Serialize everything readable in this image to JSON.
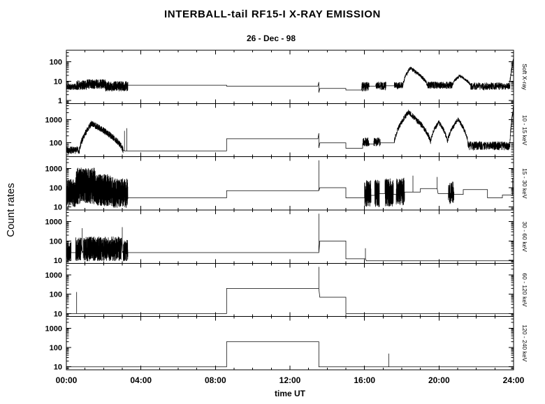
{
  "chart_data": {
    "type": "line",
    "title": "INTERBALL-tail  RF15-I   X-RAY  EMISSION",
    "subtitle": "26 - Dec - 98",
    "xlabel": "time UT",
    "ylabel": "Count rates",
    "x_range": [
      0,
      24
    ],
    "x_tick_hours": [
      0,
      4,
      8,
      12,
      16,
      20,
      24
    ],
    "x_tick_labels": [
      "00:00",
      "04:00",
      "08:00",
      "12:00",
      "16:00",
      "20:00",
      "24:00"
    ],
    "x_minor_step_hours": 1,
    "grid": false,
    "legend": "none",
    "line_color": "#000000",
    "seed": 11,
    "panels": [
      {
        "name": "Soft X-ray",
        "ylim": [
          0.7,
          400
        ],
        "yticks": [
          1,
          10,
          100
        ],
        "segments": [
          {
            "kind": "noise",
            "t0": 0.0,
            "t1": 0.55,
            "lo": 3.5,
            "hi": 7.5,
            "n": 130
          },
          {
            "kind": "noise",
            "t0": 0.55,
            "t1": 1.1,
            "lo": 3.5,
            "hi": 11,
            "n": 140
          },
          {
            "kind": "noise",
            "t0": 1.1,
            "t1": 2.1,
            "lo": 4,
            "hi": 13,
            "n": 260
          },
          {
            "kind": "noise",
            "t0": 2.1,
            "t1": 3.3,
            "lo": 3,
            "hi": 10,
            "n": 300
          },
          {
            "kind": "flat",
            "t0": 3.3,
            "t1": 8.6,
            "v": 6.2
          },
          {
            "kind": "flat",
            "t0": 8.6,
            "t1": 13.5,
            "v": 5.5
          },
          {
            "kind": "pts",
            "p": [
              [
                13.55,
                9
              ],
              [
                13.55,
                2.6
              ]
            ]
          },
          {
            "kind": "flat",
            "t0": 13.6,
            "t1": 15.0,
            "v": 4.2
          },
          {
            "kind": "flat",
            "t0": 15.0,
            "t1": 15.85,
            "v": 3.5
          },
          {
            "kind": "noise",
            "t0": 15.85,
            "t1": 16.25,
            "lo": 3,
            "hi": 9,
            "n": 90
          },
          {
            "kind": "flat",
            "t0": 16.25,
            "t1": 16.6,
            "v": 5.5
          },
          {
            "kind": "noise",
            "t0": 16.6,
            "t1": 17.15,
            "lo": 3.5,
            "hi": 9.5,
            "n": 120
          },
          {
            "kind": "flat",
            "t0": 17.15,
            "t1": 17.6,
            "v": 5.8
          },
          {
            "kind": "noise",
            "t0": 17.6,
            "t1": 18.05,
            "lo": 4,
            "hi": 9,
            "n": 100
          },
          {
            "kind": "hump",
            "t0": 18.05,
            "t1": 19.4,
            "tp": 18.45,
            "base": 5,
            "peak": 48,
            "noise": 0.22,
            "n": 220
          },
          {
            "kind": "noise",
            "t0": 19.4,
            "t1": 20.7,
            "lo": 4,
            "hi": 9.5,
            "n": 280
          },
          {
            "kind": "hump",
            "t0": 20.7,
            "t1": 21.7,
            "tp": 21.1,
            "base": 5.5,
            "peak": 19,
            "noise": 0.18,
            "n": 170
          },
          {
            "kind": "noise",
            "t0": 21.7,
            "t1": 23.8,
            "lo": 3.5,
            "hi": 8.5,
            "n": 380
          },
          {
            "kind": "hump",
            "t0": 23.8,
            "t1": 24.0,
            "tp": 23.98,
            "base": 5,
            "peak": 110,
            "noise": 0.3,
            "n": 60
          }
        ]
      },
      {
        "name": "10 - 15 keV",
        "ylim": [
          25,
          5000
        ],
        "yticks": [
          100,
          1000
        ],
        "segments": [
          {
            "kind": "noise",
            "t0": 0.0,
            "t1": 0.7,
            "lo": 33,
            "hi": 70,
            "n": 150
          },
          {
            "kind": "hump",
            "t0": 0.7,
            "t1": 3.05,
            "tp": 1.35,
            "base": 42,
            "peak": 680,
            "noise": 0.32,
            "n": 480
          },
          {
            "kind": "spike",
            "t": 3.12,
            "base": 45,
            "v": 330
          },
          {
            "kind": "spike",
            "t": 3.24,
            "base": 45,
            "v": 430
          },
          {
            "kind": "flat",
            "t0": 3.3,
            "t1": 8.6,
            "v": 45
          },
          {
            "kind": "flat",
            "t0": 8.6,
            "t1": 13.5,
            "v": 150
          },
          {
            "kind": "pts",
            "p": [
              [
                13.55,
                260
              ],
              [
                13.55,
                60
              ]
            ]
          },
          {
            "kind": "flat",
            "t0": 13.6,
            "t1": 15.0,
            "v": 100
          },
          {
            "kind": "flat",
            "t0": 15.0,
            "t1": 15.9,
            "v": 58
          },
          {
            "kind": "noise",
            "t0": 15.9,
            "t1": 16.25,
            "lo": 70,
            "hi": 170,
            "n": 80
          },
          {
            "kind": "flat",
            "t0": 16.25,
            "t1": 16.5,
            "v": 90
          },
          {
            "kind": "noise",
            "t0": 16.5,
            "t1": 16.85,
            "lo": 70,
            "hi": 170,
            "n": 80
          },
          {
            "kind": "flat",
            "t0": 16.85,
            "t1": 17.6,
            "v": 100
          },
          {
            "kind": "hump",
            "t0": 17.6,
            "t1": 19.55,
            "tp": 18.35,
            "base": 95,
            "peak": 2100,
            "noise": 0.28,
            "n": 320
          },
          {
            "kind": "hump",
            "t0": 19.55,
            "t1": 20.45,
            "tp": 19.98,
            "base": 105,
            "peak": 780,
            "noise": 0.22,
            "n": 150
          },
          {
            "kind": "hump",
            "t0": 20.45,
            "t1": 21.55,
            "tp": 21.02,
            "base": 95,
            "peak": 1050,
            "noise": 0.22,
            "n": 190
          },
          {
            "kind": "noise",
            "t0": 21.55,
            "t1": 23.8,
            "lo": 48,
            "hi": 115,
            "n": 380
          },
          {
            "kind": "hump",
            "t0": 23.8,
            "t1": 24.0,
            "tp": 23.98,
            "base": 60,
            "peak": 3000,
            "noise": 0.3,
            "n": 60
          }
        ]
      },
      {
        "name": "15 - 30 keV",
        "ylim": [
          7,
          4000
        ],
        "yticks": [
          10,
          100,
          1000
        ],
        "segments": [
          {
            "kind": "noise",
            "t0": 0.0,
            "t1": 0.5,
            "lo": 10,
            "hi": 280,
            "n": 200
          },
          {
            "kind": "noise",
            "t0": 0.5,
            "t1": 1.55,
            "lo": 14,
            "hi": 1100,
            "n": 480
          },
          {
            "kind": "noise",
            "t0": 1.55,
            "t1": 2.5,
            "lo": 11,
            "hi": 500,
            "n": 420
          },
          {
            "kind": "noise",
            "t0": 2.5,
            "t1": 3.3,
            "lo": 9,
            "hi": 300,
            "n": 350
          },
          {
            "kind": "flat",
            "t0": 3.3,
            "t1": 8.6,
            "v": 30
          },
          {
            "kind": "flat",
            "t0": 8.6,
            "t1": 13.5,
            "v": 70
          },
          {
            "kind": "spike",
            "t": 13.55,
            "base": 70,
            "v": 2600
          },
          {
            "kind": "flat",
            "t0": 13.6,
            "t1": 15.0,
            "v": 100
          },
          {
            "kind": "flat",
            "t0": 15.0,
            "t1": 16.0,
            "v": 30
          },
          {
            "kind": "noise",
            "t0": 16.0,
            "t1": 16.35,
            "lo": 10,
            "hi": 260,
            "n": 130
          },
          {
            "kind": "flat",
            "t0": 16.35,
            "t1": 16.55,
            "v": 40
          },
          {
            "kind": "noise",
            "t0": 16.55,
            "t1": 16.8,
            "lo": 10,
            "hi": 260,
            "n": 100
          },
          {
            "kind": "flat",
            "t0": 16.8,
            "t1": 17.1,
            "v": 50
          },
          {
            "kind": "noise",
            "t0": 17.1,
            "t1": 17.55,
            "lo": 10,
            "hi": 300,
            "n": 160
          },
          {
            "kind": "flat",
            "t0": 17.55,
            "t1": 17.7,
            "v": 45
          },
          {
            "kind": "noise",
            "t0": 17.7,
            "t1": 18.15,
            "lo": 12,
            "hi": 330,
            "n": 160
          },
          {
            "kind": "flat",
            "t0": 18.15,
            "t1": 18.55,
            "v": 60
          },
          {
            "kind": "spike",
            "t": 18.6,
            "base": 60,
            "v": 420
          },
          {
            "kind": "flat",
            "t0": 18.65,
            "t1": 19.0,
            "v": 60
          },
          {
            "kind": "flat",
            "t0": 19.0,
            "t1": 19.85,
            "v": 90
          },
          {
            "kind": "spike",
            "t": 19.9,
            "base": 90,
            "v": 360
          },
          {
            "kind": "flat",
            "t0": 19.95,
            "t1": 20.5,
            "v": 50
          },
          {
            "kind": "noise",
            "t0": 20.5,
            "t1": 20.8,
            "lo": 14,
            "hi": 210,
            "n": 100
          },
          {
            "kind": "flat",
            "t0": 20.8,
            "t1": 21.3,
            "v": 45
          },
          {
            "kind": "flat",
            "t0": 21.3,
            "t1": 22.6,
            "v": 80
          },
          {
            "kind": "flat",
            "t0": 22.6,
            "t1": 23.4,
            "v": 30
          },
          {
            "kind": "flat",
            "t0": 23.4,
            "t1": 23.9,
            "v": 42
          },
          {
            "kind": "spike",
            "t": 23.95,
            "base": 42,
            "v": 320
          }
        ]
      },
      {
        "name": "30 - 60 keV",
        "ylim": [
          7,
          4000
        ],
        "yticks": [
          10,
          100,
          1000
        ],
        "segments": [
          {
            "kind": "noise",
            "t0": 0.0,
            "t1": 0.25,
            "lo": 9,
            "hi": 90,
            "n": 90
          },
          {
            "kind": "flat",
            "t0": 0.25,
            "t1": 0.5,
            "v": 25
          },
          {
            "kind": "noise",
            "t0": 0.5,
            "t1": 0.8,
            "lo": 9,
            "hi": 160,
            "n": 110
          },
          {
            "kind": "spike",
            "t": 0.85,
            "base": 25,
            "v": 460
          },
          {
            "kind": "noise",
            "t0": 0.9,
            "t1": 2.95,
            "lo": 9,
            "hi": 170,
            "n": 750
          },
          {
            "kind": "spike",
            "t": 3.0,
            "base": 25,
            "v": 520
          },
          {
            "kind": "noise",
            "t0": 3.05,
            "t1": 3.3,
            "lo": 9,
            "hi": 120,
            "n": 90
          },
          {
            "kind": "flat",
            "t0": 3.3,
            "t1": 13.5,
            "v": 25
          },
          {
            "kind": "spike",
            "t": 13.55,
            "base": 25,
            "v": 2600
          },
          {
            "kind": "flat",
            "t0": 13.6,
            "t1": 15.0,
            "v": 100
          },
          {
            "kind": "flat",
            "t0": 15.0,
            "t1": 16.0,
            "v": 12
          },
          {
            "kind": "spike",
            "t": 16.05,
            "base": 12,
            "v": 42
          },
          {
            "kind": "flat",
            "t0": 16.1,
            "t1": 24.0,
            "v": 9.5
          }
        ]
      },
      {
        "name": "60 - 120 keV",
        "ylim": [
          7,
          4000
        ],
        "yticks": [
          10,
          100,
          1000
        ],
        "segments": [
          {
            "kind": "flat",
            "t0": 0.0,
            "t1": 0.5,
            "v": 10
          },
          {
            "kind": "spike",
            "t": 0.55,
            "base": 10,
            "v": 130
          },
          {
            "kind": "flat",
            "t0": 0.6,
            "t1": 8.6,
            "v": 10
          },
          {
            "kind": "flat",
            "t0": 8.6,
            "t1": 13.5,
            "v": 200
          },
          {
            "kind": "spike",
            "t": 13.55,
            "base": 200,
            "v": 2600
          },
          {
            "kind": "flat",
            "t0": 13.6,
            "t1": 15.0,
            "v": 70
          },
          {
            "kind": "flat",
            "t0": 15.0,
            "t1": 24.0,
            "v": 10
          }
        ]
      },
      {
        "name": "120 - 240 keV",
        "ylim": [
          7,
          4000
        ],
        "yticks": [
          10,
          100,
          1000
        ],
        "segments": [
          {
            "kind": "flat",
            "t0": 0.0,
            "t1": 8.6,
            "v": 10
          },
          {
            "kind": "flat",
            "t0": 8.6,
            "t1": 13.55,
            "v": 200
          },
          {
            "kind": "pts",
            "p": [
              [
                13.55,
                10
              ]
            ]
          },
          {
            "kind": "flat",
            "t0": 13.55,
            "t1": 17.25,
            "v": 10
          },
          {
            "kind": "spike",
            "t": 17.3,
            "base": 10,
            "v": 48
          },
          {
            "kind": "flat",
            "t0": 17.35,
            "t1": 24.0,
            "v": 10
          }
        ]
      }
    ]
  }
}
